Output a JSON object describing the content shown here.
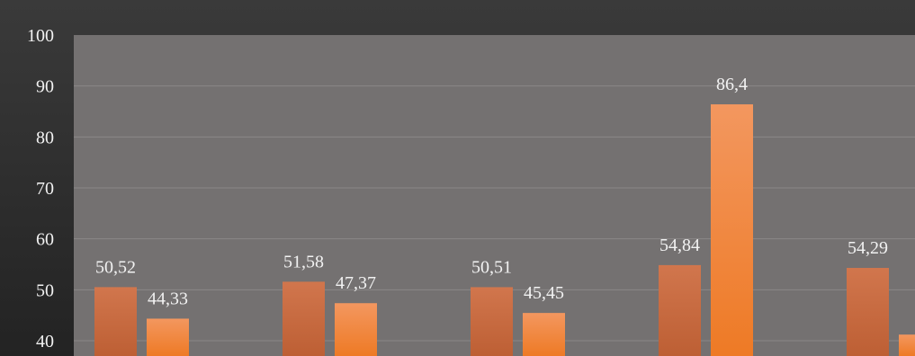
{
  "chart_data": {
    "type": "bar",
    "title": "",
    "xlabel": "",
    "ylabel": "",
    "ylim": [
      37,
      100
    ],
    "yticks": [
      40,
      50,
      60,
      70,
      80,
      90,
      100
    ],
    "grid": true,
    "legend": "none",
    "decimal_separator": ",",
    "categories": [
      "",
      "",
      "",
      "",
      ""
    ],
    "series": [
      {
        "values": [
          50.52,
          51.58,
          50.51,
          54.84,
          54.29
        ],
        "labels": [
          "50,52",
          "51,58",
          "50,51",
          "54,84",
          "54,29"
        ],
        "color": "#c86a3e"
      },
      {
        "values": [
          44.33,
          47.37,
          45.45,
          86.4,
          41.2
        ],
        "labels": [
          "44,33",
          "47,37",
          "45,45",
          "86,4",
          ""
        ],
        "color": "#f08a48"
      }
    ]
  },
  "colors": {
    "background": "#2b2b2b",
    "plot_area": "#747171",
    "gridline": "#8a8787",
    "text": "#f2f2f2"
  }
}
